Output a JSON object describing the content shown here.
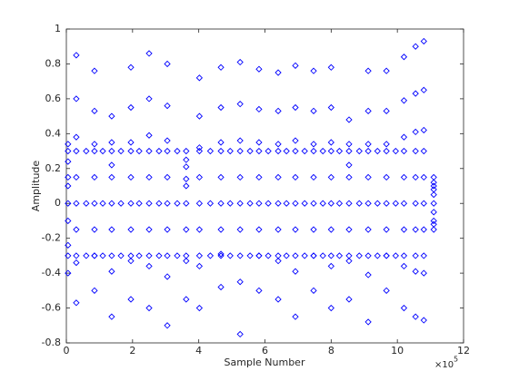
{
  "chart_data": {
    "type": "scatter",
    "xlabel": "Sample Number",
    "ylabel": "Amplitude",
    "x_exponent": {
      "base": "×10",
      "power": "5"
    },
    "color": "#0000ff",
    "marker": "diamond",
    "xlim": [
      0,
      12
    ],
    "xticks": [
      0,
      2,
      4,
      6,
      8,
      10,
      12
    ],
    "ylim": [
      -0.8,
      1
    ],
    "yticks": [
      -0.8,
      -0.6,
      -0.4,
      -0.2,
      0,
      0.2,
      0.4,
      0.6,
      0.8,
      1
    ],
    "x": [
      0.05,
      0.05,
      0.05,
      0.05,
      0.05,
      0.05,
      0.05,
      0.05,
      0.05,
      0.05,
      0.3,
      0.3,
      0.3,
      0.3,
      0.3,
      0.3,
      0.3,
      0.3,
      0.3,
      0.3,
      0.85,
      0.85,
      0.85,
      0.85,
      0.85,
      0.85,
      0.85,
      0.85,
      0.85,
      0.85,
      1.37,
      1.37,
      1.37,
      1.37,
      1.37,
      1.37,
      1.37,
      1.37,
      1.37,
      1.37,
      1.95,
      1.95,
      1.95,
      1.95,
      1.95,
      1.95,
      1.95,
      1.95,
      1.95,
      1.95,
      2.5,
      2.5,
      2.5,
      2.5,
      2.5,
      2.5,
      2.5,
      2.5,
      2.5,
      2.5,
      3.05,
      3.05,
      3.05,
      3.05,
      3.05,
      3.05,
      3.05,
      3.05,
      3.05,
      3.05,
      3.62,
      3.62,
      3.62,
      3.62,
      3.62,
      3.62,
      3.62,
      3.62,
      3.62,
      3.62,
      4.02,
      4.02,
      4.02,
      4.02,
      4.02,
      4.02,
      4.02,
      4.02,
      4.02,
      4.02,
      4.67,
      4.67,
      4.67,
      4.67,
      4.67,
      4.67,
      4.67,
      4.67,
      4.67,
      4.67,
      5.25,
      5.25,
      5.25,
      5.25,
      5.25,
      5.25,
      5.25,
      5.25,
      5.25,
      5.25,
      5.82,
      5.82,
      5.82,
      5.82,
      5.82,
      5.82,
      5.82,
      5.82,
      5.82,
      5.82,
      6.4,
      6.4,
      6.4,
      6.4,
      6.4,
      6.4,
      6.4,
      6.4,
      6.4,
      6.4,
      6.92,
      6.92,
      6.92,
      6.92,
      6.92,
      6.92,
      6.92,
      6.92,
      6.92,
      6.92,
      7.47,
      7.47,
      7.47,
      7.47,
      7.47,
      7.47,
      7.47,
      7.47,
      7.47,
      7.47,
      8.0,
      8.0,
      8.0,
      8.0,
      8.0,
      8.0,
      8.0,
      8.0,
      8.0,
      8.0,
      8.54,
      8.54,
      8.54,
      8.54,
      8.54,
      8.54,
      8.54,
      8.54,
      8.54,
      8.54,
      9.12,
      9.12,
      9.12,
      9.12,
      9.12,
      9.12,
      9.12,
      9.12,
      9.12,
      9.12,
      9.67,
      9.67,
      9.67,
      9.67,
      9.67,
      9.67,
      9.67,
      9.67,
      9.67,
      9.67,
      10.2,
      10.2,
      10.2,
      10.2,
      10.2,
      10.2,
      10.2,
      10.2,
      10.2,
      10.2,
      10.55,
      10.55,
      10.55,
      10.55,
      10.55,
      10.55,
      10.55,
      10.55,
      10.55,
      10.55,
      10.8,
      10.8,
      10.8,
      10.8,
      10.8,
      10.8,
      10.8,
      10.8,
      10.8,
      10.8,
      11.1,
      11.1,
      11.1,
      11.1,
      11.1,
      11.1,
      11.1,
      11.1,
      11.1,
      11.1,
      0.6,
      0.6,
      0.6,
      1.1,
      1.1,
      1.1,
      1.65,
      1.65,
      1.65,
      2.2,
      2.2,
      2.2,
      2.8,
      2.8,
      2.8,
      3.35,
      3.35,
      3.35,
      4.35,
      4.35,
      4.35,
      4.95,
      4.95,
      4.95,
      5.55,
      5.55,
      5.55,
      6.1,
      6.1,
      6.1,
      6.65,
      6.65,
      6.65,
      7.2,
      7.2,
      7.2,
      7.75,
      7.75,
      7.75,
      8.25,
      8.25,
      8.25,
      8.85,
      8.85,
      8.85,
      9.4,
      9.4,
      9.4,
      9.95,
      9.95,
      9.95
    ],
    "values": [
      0.34,
      0.24,
      0.15,
      0.3,
      0.1,
      0,
      -0.1,
      -0.3,
      -0.24,
      -0.4,
      0.85,
      0.6,
      0.38,
      0.3,
      0.15,
      0,
      -0.15,
      -0.3,
      -0.34,
      -0.57,
      0.76,
      0.53,
      0.34,
      0.3,
      0.15,
      0,
      -0.15,
      -0.3,
      -0.3,
      -0.5,
      0.5,
      0.35,
      0.22,
      0.3,
      0.15,
      0,
      -0.15,
      -0.3,
      -0.39,
      -0.65,
      0.78,
      0.55,
      0.35,
      0.3,
      0.15,
      0,
      -0.15,
      -0.3,
      -0.33,
      -0.55,
      0.86,
      0.6,
      0.39,
      0.3,
      0.15,
      0,
      -0.15,
      -0.3,
      -0.36,
      -0.6,
      0.8,
      0.56,
      0.36,
      0.3,
      0.15,
      0,
      -0.15,
      -0.3,
      -0.42,
      -0.7,
      0.3,
      0.21,
      0.14,
      0.25,
      0.1,
      0,
      -0.15,
      -0.3,
      -0.33,
      -0.55,
      0.72,
      0.5,
      0.32,
      0.3,
      0.15,
      0,
      -0.15,
      -0.3,
      -0.36,
      -0.6,
      0.78,
      0.55,
      0.35,
      0.3,
      0.15,
      0,
      -0.15,
      -0.3,
      -0.29,
      -0.48,
      0.81,
      0.57,
      0.36,
      0.3,
      0.15,
      0,
      -0.15,
      -0.3,
      -0.45,
      -0.75,
      0.77,
      0.54,
      0.35,
      0.3,
      0.15,
      0,
      -0.15,
      -0.3,
      -0.3,
      -0.5,
      0.75,
      0.53,
      0.34,
      0.3,
      0.15,
      0,
      -0.15,
      -0.3,
      -0.33,
      -0.55,
      0.79,
      0.55,
      0.36,
      0.3,
      0.15,
      0,
      -0.15,
      -0.3,
      -0.39,
      -0.65,
      0.76,
      0.53,
      0.34,
      0.3,
      0.15,
      0,
      -0.15,
      -0.3,
      -0.3,
      -0.5,
      0.78,
      0.55,
      0.35,
      0.3,
      0.15,
      0,
      -0.15,
      -0.3,
      -0.36,
      -0.6,
      0.48,
      0.34,
      0.22,
      0.3,
      0.15,
      0,
      -0.15,
      -0.3,
      -0.33,
      -0.55,
      0.76,
      0.53,
      0.34,
      0.3,
      0.15,
      0,
      -0.15,
      -0.3,
      -0.41,
      -0.68,
      0.76,
      0.53,
      0.34,
      0.3,
      0.15,
      0,
      -0.15,
      -0.3,
      -0.3,
      -0.5,
      0.84,
      0.59,
      0.38,
      0.3,
      0.15,
      0,
      -0.15,
      -0.3,
      -0.36,
      -0.6,
      0.9,
      0.63,
      0.41,
      0.3,
      0.15,
      0,
      -0.15,
      -0.3,
      -0.39,
      -0.65,
      0.93,
      0.65,
      0.42,
      0.3,
      0.15,
      0,
      -0.15,
      -0.3,
      -0.4,
      -0.67,
      0.15,
      0.1,
      0.05,
      0.12,
      0.08,
      0,
      -0.05,
      -0.1,
      -0.12,
      -0.15,
      0.3,
      0,
      -0.3,
      0.3,
      0,
      -0.3,
      0.3,
      0,
      -0.3,
      0.3,
      0,
      -0.3,
      0.3,
      0,
      -0.3,
      0.3,
      0,
      -0.3,
      0.3,
      0,
      -0.3,
      0.3,
      0,
      -0.3,
      0.3,
      0,
      -0.3,
      0.3,
      0,
      -0.3,
      0.3,
      0,
      -0.3,
      0.3,
      0,
      -0.3,
      0.3,
      0,
      -0.3,
      0.3,
      0,
      -0.3,
      0.3,
      0,
      -0.3,
      0.3,
      0,
      -0.3,
      0.3,
      0,
      -0.3
    ]
  }
}
